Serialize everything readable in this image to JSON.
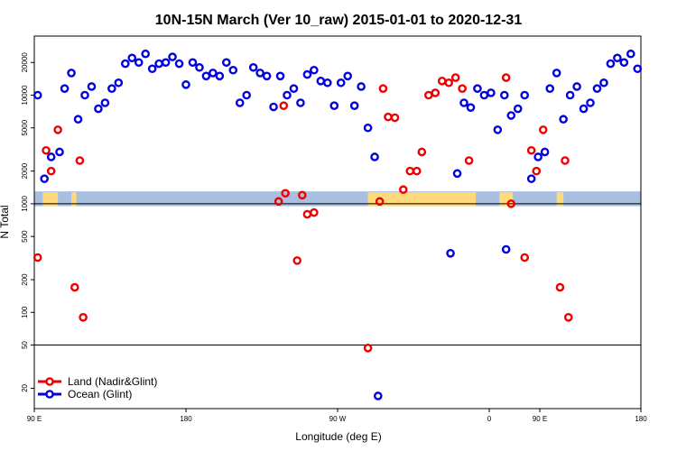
{
  "chart_data": {
    "type": "scatter",
    "title": "10N-15N March (Ver 10_raw)   2015-01-01 to 2020-12-31",
    "xlabel": "Longitude (deg E)",
    "ylabel": "N Total",
    "x_domain": [
      0,
      360
    ],
    "y_scale": "log",
    "ylim": [
      13,
      35000
    ],
    "x_ticks": [
      {
        "pos": 0,
        "label": "90 E"
      },
      {
        "pos": 90,
        "label": "180"
      },
      {
        "pos": 180,
        "label": "90 W"
      },
      {
        "pos": 270,
        "label": "0"
      },
      {
        "pos": 360,
        "label": "180"
      }
    ],
    "x_ticks_extra": [
      {
        "pos": 360,
        "label": "90 E"
      }
    ],
    "y_ticks": [
      20,
      50,
      100,
      200,
      500,
      1000,
      2000,
      5000,
      10000,
      20000
    ],
    "reference_lines": [
      1000,
      50
    ],
    "colors": {
      "land": "#ee0000",
      "ocean": "#0000dd",
      "map_ocean": "#a8bfe0",
      "map_land": "#ffd97a",
      "ref_line": "#000000"
    },
    "legend": [
      {
        "label": "Land (Nadir&Glint)",
        "color": "#ee0000"
      },
      {
        "label": "Ocean (Glint)",
        "color": "#0000dd"
      }
    ],
    "series": [
      {
        "name": "Land (Nadir&Glint)",
        "color": "#ee0000",
        "points": [
          [
            2,
            320
          ],
          [
            7,
            3100
          ],
          [
            10,
            2000
          ],
          [
            14,
            4800
          ],
          [
            24,
            170
          ],
          [
            27,
            2500
          ],
          [
            29,
            90
          ],
          [
            145,
            1050
          ],
          [
            149,
            1250
          ],
          [
            156,
            300
          ],
          [
            159,
            1200
          ],
          [
            162,
            800
          ],
          [
            166,
            830
          ],
          [
            148,
            8000
          ],
          [
            198,
            47
          ],
          [
            205,
            1050
          ],
          [
            207,
            11500
          ],
          [
            210,
            6300
          ],
          [
            214,
            6200
          ],
          [
            219,
            1350
          ],
          [
            223,
            2000
          ],
          [
            227,
            2000
          ],
          [
            230,
            3000
          ],
          [
            234,
            10000
          ],
          [
            238,
            10500
          ],
          [
            242,
            13500
          ],
          [
            246,
            13000
          ],
          [
            250,
            14500
          ],
          [
            254,
            11500
          ],
          [
            258,
            2500
          ],
          [
            280,
            14500
          ],
          [
            283,
            1000
          ],
          [
            291,
            320
          ],
          [
            295,
            3100
          ],
          [
            298,
            2000
          ],
          [
            302,
            4800
          ],
          [
            312,
            170
          ],
          [
            315,
            2500
          ],
          [
            317,
            90
          ]
        ]
      },
      {
        "name": "Ocean (Glint)",
        "color": "#0000dd",
        "points": [
          [
            2,
            10000
          ],
          [
            6,
            1700
          ],
          [
            10,
            2700
          ],
          [
            15,
            3000
          ],
          [
            18,
            11500
          ],
          [
            22,
            16000
          ],
          [
            26,
            6000
          ],
          [
            30,
            10000
          ],
          [
            34,
            12000
          ],
          [
            38,
            7500
          ],
          [
            42,
            8500
          ],
          [
            46,
            11500
          ],
          [
            50,
            13000
          ],
          [
            54,
            19500
          ],
          [
            58,
            22000
          ],
          [
            62,
            20000
          ],
          [
            66,
            24000
          ],
          [
            70,
            17500
          ],
          [
            74,
            19500
          ],
          [
            78,
            20000
          ],
          [
            82,
            22500
          ],
          [
            86,
            19500
          ],
          [
            90,
            12500
          ],
          [
            94,
            20000
          ],
          [
            98,
            18000
          ],
          [
            102,
            15000
          ],
          [
            106,
            16000
          ],
          [
            110,
            15000
          ],
          [
            114,
            20000
          ],
          [
            118,
            17000
          ],
          [
            122,
            8500
          ],
          [
            126,
            10000
          ],
          [
            130,
            18000
          ],
          [
            134,
            16000
          ],
          [
            138,
            15000
          ],
          [
            142,
            7800
          ],
          [
            146,
            15000
          ],
          [
            150,
            10000
          ],
          [
            154,
            11500
          ],
          [
            158,
            8500
          ],
          [
            162,
            15500
          ],
          [
            166,
            17000
          ],
          [
            170,
            13500
          ],
          [
            174,
            13000
          ],
          [
            178,
            8000
          ],
          [
            182,
            13000
          ],
          [
            186,
            15000
          ],
          [
            190,
            8000
          ],
          [
            194,
            12000
          ],
          [
            198,
            5000
          ],
          [
            202,
            2700
          ],
          [
            204,
            17
          ],
          [
            247,
            350
          ],
          [
            251,
            1900
          ],
          [
            255,
            8500
          ],
          [
            259,
            7700
          ],
          [
            263,
            11500
          ],
          [
            267,
            10000
          ],
          [
            271,
            10500
          ],
          [
            275,
            4800
          ],
          [
            279,
            10000
          ],
          [
            283,
            6500
          ],
          [
            287,
            7500
          ],
          [
            291,
            10000
          ],
          [
            295,
            1700
          ],
          [
            299,
            2700
          ],
          [
            303,
            3000
          ],
          [
            306,
            11500
          ],
          [
            310,
            16000
          ],
          [
            314,
            6000
          ],
          [
            318,
            10000
          ],
          [
            322,
            12000
          ],
          [
            326,
            7500
          ],
          [
            330,
            8500
          ],
          [
            334,
            11500
          ],
          [
            338,
            13000
          ],
          [
            342,
            19500
          ],
          [
            346,
            22000
          ],
          [
            350,
            20000
          ],
          [
            354,
            24000
          ],
          [
            358,
            17500
          ],
          [
            280,
            380
          ]
        ]
      }
    ]
  }
}
